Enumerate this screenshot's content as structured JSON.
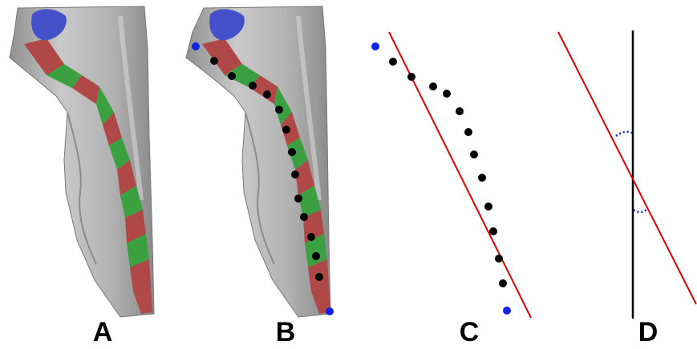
{
  "panels": [
    {
      "id": "A",
      "label": "A"
    },
    {
      "id": "B",
      "label": "B"
    },
    {
      "id": "C",
      "label": "C"
    },
    {
      "id": "D",
      "label": "D"
    }
  ],
  "colors": {
    "mesh": "#a9a9a9",
    "mesh_light": "#cdcdcd",
    "mesh_dark": "#7d7d7d",
    "segment_red": "#b04848",
    "segment_green": "#3aa040",
    "region_blue": "#4650c8",
    "endpoint_blue": "#1020e6",
    "point_black": "#000000",
    "fit_line_red": "#e00000",
    "axis_black": "#000000"
  }
}
